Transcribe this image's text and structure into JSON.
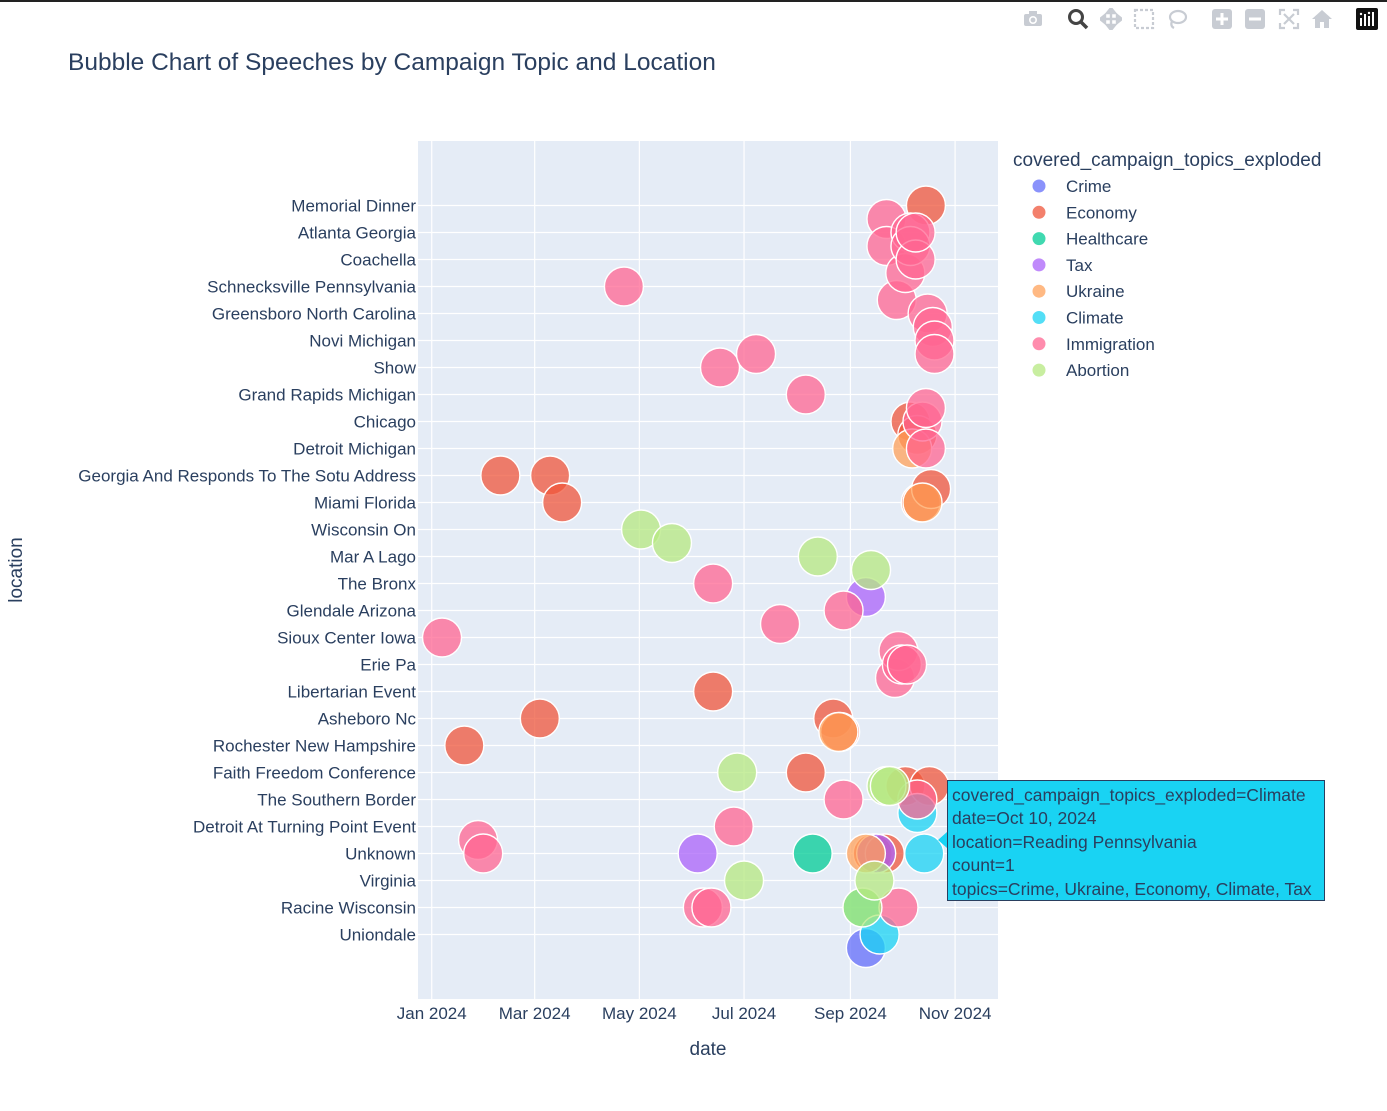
{
  "modebar": {
    "buttons": [
      {
        "name": "camera-icon",
        "title": "Download plot as a png"
      },
      {
        "name": "zoom-icon",
        "title": "Zoom"
      },
      {
        "name": "pan-icon",
        "title": "Pan"
      },
      {
        "name": "box-select-icon",
        "title": "Box Select"
      },
      {
        "name": "lasso-select-icon",
        "title": "Lasso Select"
      },
      {
        "name": "zoom-in-icon",
        "title": "Zoom in"
      },
      {
        "name": "zoom-out-icon",
        "title": "Zoom out"
      },
      {
        "name": "autoscale-icon",
        "title": "Autoscale"
      },
      {
        "name": "reset-axes-icon",
        "title": "Reset axes"
      },
      {
        "name": "plotly-logo-icon",
        "title": "Produced with Plotly"
      }
    ]
  },
  "tooltip": {
    "line1": "covered_campaign_topics_exploded=Climate",
    "line2": "date=Oct 10, 2024",
    "line3": "location=Reading Pennsylvania",
    "line4": "count=1",
    "line5": "topics=Crime, Ukraine, Economy, Climate, Tax"
  },
  "chart_data": {
    "type": "scatter",
    "title": "Bubble Chart of Speeches by Campaign Topic and Location",
    "xlabel": "date",
    "ylabel": "location",
    "x_ticks": [
      "2024-01-01",
      "2024-03-01",
      "2024-05-01",
      "2024-07-01",
      "2024-09-01",
      "2024-11-01"
    ],
    "x_tick_labels": [
      "Jan 2024",
      "Mar 2024",
      "May 2024",
      "Jul 2024",
      "Sep 2024",
      "Nov 2024"
    ],
    "xlim": [
      "2023-12-24",
      "2024-11-26"
    ],
    "y_tick_labels": [
      "Memorial Dinner",
      "Atlanta Georgia",
      "Coachella",
      "Schnecksville Pennsylvania",
      "Greensboro North Carolina",
      "Novi Michigan",
      "Show",
      "Grand Rapids Michigan",
      "Chicago",
      "Detroit Michigan",
      "Georgia And Responds To The Sotu Address",
      "Miami Florida",
      "Wisconsin On",
      "Mar A Lago",
      "The Bronx",
      "Glendale Arizona",
      "Sioux Center Iowa",
      "Erie Pa",
      "Libertarian Event",
      "Asheboro Nc",
      "Rochester New Hampshire",
      "Faith Freedom Conference",
      "The Southern Border",
      "Detroit At Turning Point Event",
      "Unknown",
      "Virginia",
      "Racine Wisconsin",
      "Uniondale"
    ],
    "y_categories_top_to_bottom": [
      "cat-1",
      "Memorial Dinner",
      "cat-3",
      "Atlanta Georgia",
      "cat-5",
      "Coachella",
      "cat-7",
      "Schnecksville Pennsylvania",
      "cat-9",
      "Greensboro North Carolina",
      "cat-11",
      "Novi Michigan",
      "cat-13",
      "Show",
      "cat-15",
      "Grand Rapids Michigan",
      "cat-17",
      "Chicago",
      "cat-19",
      "Detroit Michigan",
      "cat-21",
      "Georgia And Responds To The Sotu Address",
      "cat-23",
      "Miami Florida",
      "cat-25",
      "Wisconsin On",
      "cat-27",
      "Mar A Lago",
      "cat-29",
      "The Bronx",
      "cat-31",
      "Glendale Arizona",
      "cat-33",
      "Sioux Center Iowa",
      "cat-35",
      "Erie Pa",
      "cat-37",
      "Libertarian Event",
      "cat-39",
      "Asheboro Nc",
      "cat-41",
      "Rochester New Hampshire",
      "cat-43",
      "Faith Freedom Conference",
      "cat-45",
      "The Southern Border",
      "cat-47",
      "Detroit At Turning Point Event",
      "cat-49",
      "Unknown",
      "cat-51",
      "Virginia",
      "cat-53",
      "Racine Wisconsin",
      "cat-55",
      "Uniondale",
      "cat-57"
    ],
    "legend_title": "covered_campaign_topics_exploded",
    "legend_position": "right",
    "marker_opacity": 0.75,
    "series": [
      {
        "name": "Crime",
        "color": "#636efa",
        "points": [
          {
            "date": "2024-09-10",
            "y": "cat-57"
          },
          {
            "date": "2024-09-15",
            "y": "Unknown"
          }
        ]
      },
      {
        "name": "Economy",
        "color": "#ef553b",
        "points": [
          {
            "date": "2024-01-20",
            "y": "Rochester New Hampshire"
          },
          {
            "date": "2024-02-10",
            "y": "Georgia And Responds To The Sotu Address"
          },
          {
            "date": "2024-03-04",
            "y": "Asheboro Nc"
          },
          {
            "date": "2024-03-10",
            "y": "Georgia And Responds To The Sotu Address"
          },
          {
            "date": "2024-03-17",
            "y": "Miami Florida"
          },
          {
            "date": "2024-06-13",
            "y": "Libertarian Event"
          },
          {
            "date": "2024-08-06",
            "y": "Faith Freedom Conference"
          },
          {
            "date": "2024-08-22",
            "y": "Asheboro Nc"
          },
          {
            "date": "2024-08-26",
            "y": "cat-41"
          },
          {
            "date": "2024-09-14",
            "y": "Unknown"
          },
          {
            "date": "2024-09-21",
            "y": "Unknown"
          },
          {
            "date": "2024-10-03",
            "y": "cat-45"
          },
          {
            "date": "2024-10-06",
            "y": "Chicago"
          },
          {
            "date": "2024-10-10",
            "y": "cat-19"
          },
          {
            "date": "2024-10-12",
            "y": "Miami Florida"
          },
          {
            "date": "2024-10-15",
            "y": "Memorial Dinner"
          },
          {
            "date": "2024-10-17",
            "y": "cat-45"
          },
          {
            "date": "2024-10-18",
            "y": "cat-23"
          }
        ]
      },
      {
        "name": "Healthcare",
        "color": "#00cc96",
        "points": [
          {
            "date": "2024-08-10",
            "y": "Unknown"
          },
          {
            "date": "2024-09-08",
            "y": "Racine Wisconsin"
          }
        ]
      },
      {
        "name": "Tax",
        "color": "#ab63fa",
        "points": [
          {
            "date": "2024-06-04",
            "y": "Unknown"
          },
          {
            "date": "2024-09-10",
            "y": "cat-31"
          },
          {
            "date": "2024-09-16",
            "y": "Unknown"
          }
        ]
      },
      {
        "name": "Ukraine",
        "color": "#ffa15a",
        "points": [
          {
            "date": "2024-08-25",
            "y": "cat-41"
          },
          {
            "date": "2024-09-10",
            "y": "Unknown"
          },
          {
            "date": "2024-10-07",
            "y": "Detroit Michigan"
          },
          {
            "date": "2024-10-13",
            "y": "Miami Florida"
          }
        ]
      },
      {
        "name": "Climate",
        "color": "#19d3f3",
        "points": [
          {
            "date": "2024-09-18",
            "y": "Uniondale"
          },
          {
            "date": "2024-10-10",
            "y": "cat-47"
          },
          {
            "date": "2024-10-14",
            "y": "Unknown"
          }
        ]
      },
      {
        "name": "Immigration",
        "color": "#ff6692",
        "points": [
          {
            "date": "2024-01-07",
            "y": "Sioux Center Iowa"
          },
          {
            "date": "2024-01-28",
            "y": "cat-49"
          },
          {
            "date": "2024-01-31",
            "y": "Unknown"
          },
          {
            "date": "2024-04-22",
            "y": "Schnecksville Pennsylvania"
          },
          {
            "date": "2024-06-13",
            "y": "The Bronx"
          },
          {
            "date": "2024-06-07",
            "y": "Racine Wisconsin"
          },
          {
            "date": "2024-06-12",
            "y": "Racine Wisconsin"
          },
          {
            "date": "2024-06-17",
            "y": "Show"
          },
          {
            "date": "2024-06-25",
            "y": "Detroit At Turning Point Event"
          },
          {
            "date": "2024-07-08",
            "y": "cat-13"
          },
          {
            "date": "2024-07-22",
            "y": "cat-33"
          },
          {
            "date": "2024-08-06",
            "y": "Grand Rapids Michigan"
          },
          {
            "date": "2024-08-28",
            "y": "Glendale Arizona"
          },
          {
            "date": "2024-08-28",
            "y": "The Southern Border"
          },
          {
            "date": "2024-09-22",
            "y": "cat-3"
          },
          {
            "date": "2024-09-22",
            "y": "cat-5"
          },
          {
            "date": "2024-09-27",
            "y": "cat-37"
          },
          {
            "date": "2024-09-28",
            "y": "cat-9"
          },
          {
            "date": "2024-09-29",
            "y": "Racine Wisconsin"
          },
          {
            "date": "2024-09-29",
            "y": "cat-35"
          },
          {
            "date": "2024-10-01",
            "y": "Erie Pa"
          },
          {
            "date": "2024-10-03",
            "y": "cat-7"
          },
          {
            "date": "2024-10-04",
            "y": "Erie Pa"
          },
          {
            "date": "2024-10-06",
            "y": "Atlanta Georgia"
          },
          {
            "date": "2024-10-06",
            "y": "cat-5"
          },
          {
            "date": "2024-10-09",
            "y": "Coachella"
          },
          {
            "date": "2024-10-09",
            "y": "Atlanta Georgia"
          },
          {
            "date": "2024-10-10",
            "y": "The Southern Border"
          },
          {
            "date": "2024-10-13",
            "y": "Chicago"
          },
          {
            "date": "2024-10-15",
            "y": "cat-17"
          },
          {
            "date": "2024-10-15",
            "y": "Detroit Michigan"
          },
          {
            "date": "2024-10-16",
            "y": "Greensboro North Carolina"
          },
          {
            "date": "2024-10-19",
            "y": "cat-11"
          },
          {
            "date": "2024-10-20",
            "y": "Novi Michigan"
          },
          {
            "date": "2024-10-20",
            "y": "cat-13"
          }
        ]
      },
      {
        "name": "Abortion",
        "color": "#b6e880",
        "points": [
          {
            "date": "2024-05-02",
            "y": "Wisconsin On"
          },
          {
            "date": "2024-05-20",
            "y": "cat-27"
          },
          {
            "date": "2024-06-27",
            "y": "Faith Freedom Conference"
          },
          {
            "date": "2024-07-01",
            "y": "Virginia"
          },
          {
            "date": "2024-08-13",
            "y": "Mar A Lago"
          },
          {
            "date": "2024-09-08",
            "y": "Racine Wisconsin"
          },
          {
            "date": "2024-09-13",
            "y": "cat-29"
          },
          {
            "date": "2024-09-15",
            "y": "Virginia"
          },
          {
            "date": "2024-09-22",
            "y": "cat-45"
          },
          {
            "date": "2024-09-24",
            "y": "cat-45"
          }
        ]
      }
    ]
  }
}
